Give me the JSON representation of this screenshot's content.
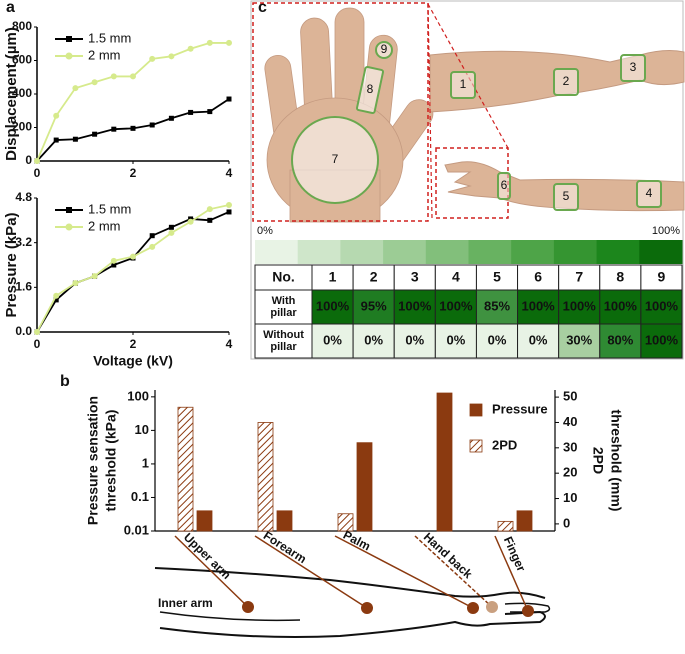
{
  "panel_labels": [
    "a",
    "b",
    "c"
  ],
  "chart_data": [
    {
      "type": "line",
      "ylabel": "Displacement (µm)",
      "x": [
        0,
        0.4,
        0.8,
        1.2,
        1.6,
        2.0,
        2.4,
        2.8,
        3.2,
        3.6,
        4.0
      ],
      "xlim": [
        0,
        4
      ],
      "xticks": [
        0,
        2,
        4
      ],
      "ylim": [
        0,
        800
      ],
      "yticks": [
        0,
        200,
        400,
        600,
        800
      ],
      "legend": "upper-left",
      "series": [
        {
          "name": "1.5 mm",
          "color": "#000000",
          "marker": "square",
          "values": [
            0,
            125,
            130,
            160,
            190,
            195,
            215,
            255,
            290,
            295,
            370
          ]
        },
        {
          "name": "2 mm",
          "color": "#d6ea8c",
          "marker": "circle",
          "values": [
            0,
            270,
            435,
            470,
            505,
            505,
            610,
            625,
            670,
            705,
            705
          ]
        }
      ]
    },
    {
      "type": "line",
      "ylabel": "Pressure (kPa)",
      "xlabel": "Voltage (kV)",
      "x": [
        0,
        0.4,
        0.8,
        1.2,
        1.6,
        2.0,
        2.4,
        2.8,
        3.2,
        3.6,
        4.0
      ],
      "xlim": [
        0,
        4
      ],
      "xticks": [
        0,
        2,
        4
      ],
      "ylim": [
        0,
        4.8
      ],
      "yticks": [
        {
          "value": 0,
          "label": "0.0"
        },
        1.6,
        3.2,
        4.8
      ],
      "legend": "upper-left",
      "series": [
        {
          "name": "1.5 mm",
          "color": "#000000",
          "marker": "square",
          "values": [
            0,
            1.15,
            1.75,
            2.0,
            2.4,
            2.65,
            3.45,
            3.75,
            4.05,
            4.0,
            4.3
          ]
        },
        {
          "name": "2 mm",
          "color": "#d6ea8c",
          "marker": "circle",
          "values": [
            0,
            1.3,
            1.75,
            2.0,
            2.55,
            2.7,
            3.05,
            3.55,
            3.95,
            4.4,
            4.55
          ]
        }
      ]
    },
    {
      "type": "bar",
      "ylabel": [
        "Pressure sensation",
        "threshold (kPa)"
      ],
      "y2label": [
        "2PD",
        "threshold (mm)"
      ],
      "categories": [
        "Upper arm",
        "Forearm",
        "Palm",
        "Hand back",
        "Finger"
      ],
      "ylim": [
        0.01,
        160
      ],
      "yticks": [
        100,
        10,
        1,
        0.1,
        0.01
      ],
      "log_scale": true,
      "y2lim": [
        -2.8,
        52.8
      ],
      "y2ticks": [
        0,
        10,
        20,
        30,
        40,
        50
      ],
      "legend": "upper-right",
      "annotation": "Inner arm",
      "series": [
        {
          "name": "Pressure",
          "color": "#8b3a10",
          "values": [
            0.04,
            0.04,
            4.3,
            130,
            0.04
          ]
        },
        {
          "name": "2PD",
          "color": "#8b3a10",
          "pattern": "hatch",
          "axis": "y2",
          "values": [
            46,
            40,
            4,
            null,
            1
          ]
        }
      ]
    }
  ],
  "photo_labels": [
    "1",
    "2",
    "3",
    "4",
    "5",
    "6",
    "7",
    "8",
    "9"
  ],
  "colorbar": {
    "labels": [
      "0%",
      "100%"
    ],
    "colors": [
      "#e8f3e5",
      "#cfe6ca",
      "#b6d9b0",
      "#9ccc95",
      "#82bf7b",
      "#68b261",
      "#4ea448",
      "#359531",
      "#1c861c",
      "#0b6b0b"
    ]
  },
  "table": {
    "header": [
      "No.",
      "1",
      "2",
      "3",
      "4",
      "5",
      "6",
      "7",
      "8",
      "9"
    ],
    "rows": [
      {
        "label": [
          "With",
          "pillar"
        ],
        "cells": [
          "100%",
          "95%",
          "100%",
          "100%",
          "85%",
          "100%",
          "100%",
          "100%",
          "100%"
        ],
        "colors": [
          "#0b6b0b",
          "#1f7c22",
          "#0b6b0b",
          "#0b6b0b",
          "#3f9240",
          "#0b6b0b",
          "#0b6b0b",
          "#0b6b0b",
          "#0b6b0b"
        ]
      },
      {
        "label": [
          "Without",
          "pillar"
        ],
        "cells": [
          "0%",
          "0%",
          "0%",
          "0%",
          "0%",
          "0%",
          "30%",
          "80%",
          "100%"
        ],
        "colors": [
          "#e8f3e5",
          "#e8f3e5",
          "#e8f3e5",
          "#e8f3e5",
          "#e8f3e5",
          "#e8f3e5",
          "#a8cfa1",
          "#2f8a33",
          "#0b6b0b"
        ]
      }
    ]
  }
}
